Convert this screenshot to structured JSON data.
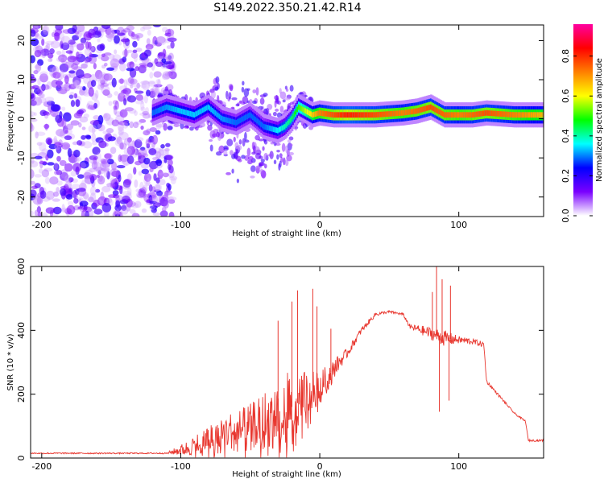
{
  "title": "S149.2022.350.21.42.R14",
  "chart_data": [
    {
      "type": "heatmap",
      "xlabel": "Height of straight line (km)",
      "ylabel": "Frequency (Hz)",
      "xlim": [
        -208,
        161
      ],
      "ylim": [
        -25,
        24
      ],
      "xticks": [
        -200,
        -100,
        0,
        100
      ],
      "yticks": [
        -20,
        -10,
        0,
        10,
        20
      ],
      "grid": false,
      "colorbar": {
        "label": "Normalized spectral amplitude",
        "range": [
          0.0,
          0.96
        ],
        "ticks": [
          0.0,
          0.2,
          0.4,
          0.6,
          0.8
        ],
        "colors": [
          "#ffffff",
          "#7a00ff",
          "#0000ff",
          "#00ffff",
          "#00ff00",
          "#ffff00",
          "#ff8000",
          "#ff0000",
          "#ff00a0"
        ]
      },
      "ridge": {
        "x": [
          -120,
          -110,
          -100,
          -90,
          -80,
          -70,
          -60,
          -50,
          -40,
          -30,
          -25,
          -20,
          -15,
          -10,
          -5,
          0,
          10,
          20,
          40,
          60,
          70,
          80,
          85,
          90,
          100,
          110,
          120,
          140,
          160
        ],
        "y": [
          1.5,
          3,
          2,
          1,
          3,
          0,
          -1,
          1,
          -2,
          -3,
          -2,
          0,
          3,
          2,
          1,
          1.5,
          1,
          1,
          1,
          1.5,
          2,
          3,
          2,
          1,
          1,
          1,
          1.5,
          1,
          1
        ]
      },
      "ridge_amplitude": {
        "x": [
          -120,
          -100,
          -80,
          -60,
          -40,
          -20,
          0,
          20,
          40,
          60,
          80,
          100,
          120,
          140,
          160
        ],
        "y": [
          0.3,
          0.35,
          0.35,
          0.3,
          0.3,
          0.45,
          0.75,
          0.85,
          0.8,
          0.75,
          0.8,
          0.75,
          0.8,
          0.75,
          0.7
        ]
      },
      "noise_region_x": [
        -208,
        -115
      ]
    },
    {
      "type": "line",
      "xlabel": "Height of straight line (km)",
      "ylabel": "SNR (10 * v/v)",
      "xlim": [
        -208,
        161
      ],
      "ylim": [
        0,
        600
      ],
      "xticks": [
        -200,
        -100,
        0,
        100
      ],
      "yticks": [
        0,
        200,
        400,
        600
      ],
      "grid": false,
      "series": [
        {
          "color": "#e8372f",
          "envelope_x": [
            -208,
            -160,
            -110,
            -95,
            -80,
            -70,
            -60,
            -50,
            -40,
            -30,
            -20,
            -10,
            0,
            10,
            20,
            30,
            40,
            50,
            60,
            65,
            70,
            80,
            90,
            100,
            110,
            118,
            120,
            130,
            140,
            148,
            150,
            161
          ],
          "envelope_y": [
            15,
            15,
            15,
            30,
            60,
            80,
            90,
            100,
            120,
            140,
            160,
            190,
            220,
            280,
            330,
            400,
            450,
            458,
            450,
            410,
            405,
            390,
            375,
            370,
            365,
            355,
            240,
            190,
            140,
            115,
            55,
            55
          ],
          "noise_amplitude": [
            2,
            2,
            2,
            25,
            45,
            55,
            60,
            70,
            90,
            110,
            120,
            80,
            50,
            30,
            15,
            10,
            6,
            4,
            4,
            8,
            12,
            20,
            25,
            12,
            10,
            8,
            5,
            4,
            3,
            3,
            3,
            3
          ],
          "spikes": [
            {
              "x": -16,
              "y": 525
            },
            {
              "x": -5,
              "y": 530
            },
            {
              "x": -20,
              "y": 490
            },
            {
              "x": -30,
              "y": 430
            },
            {
              "x": -2,
              "y": 475
            },
            {
              "x": 8,
              "y": 405
            },
            {
              "x": 84,
              "y": 600
            },
            {
              "x": 88,
              "y": 560
            },
            {
              "x": 81,
              "y": 520
            },
            {
              "x": 94,
              "y": 540
            },
            {
              "x": 86,
              "y": 145
            },
            {
              "x": 93,
              "y": 180
            }
          ]
        }
      ]
    }
  ]
}
